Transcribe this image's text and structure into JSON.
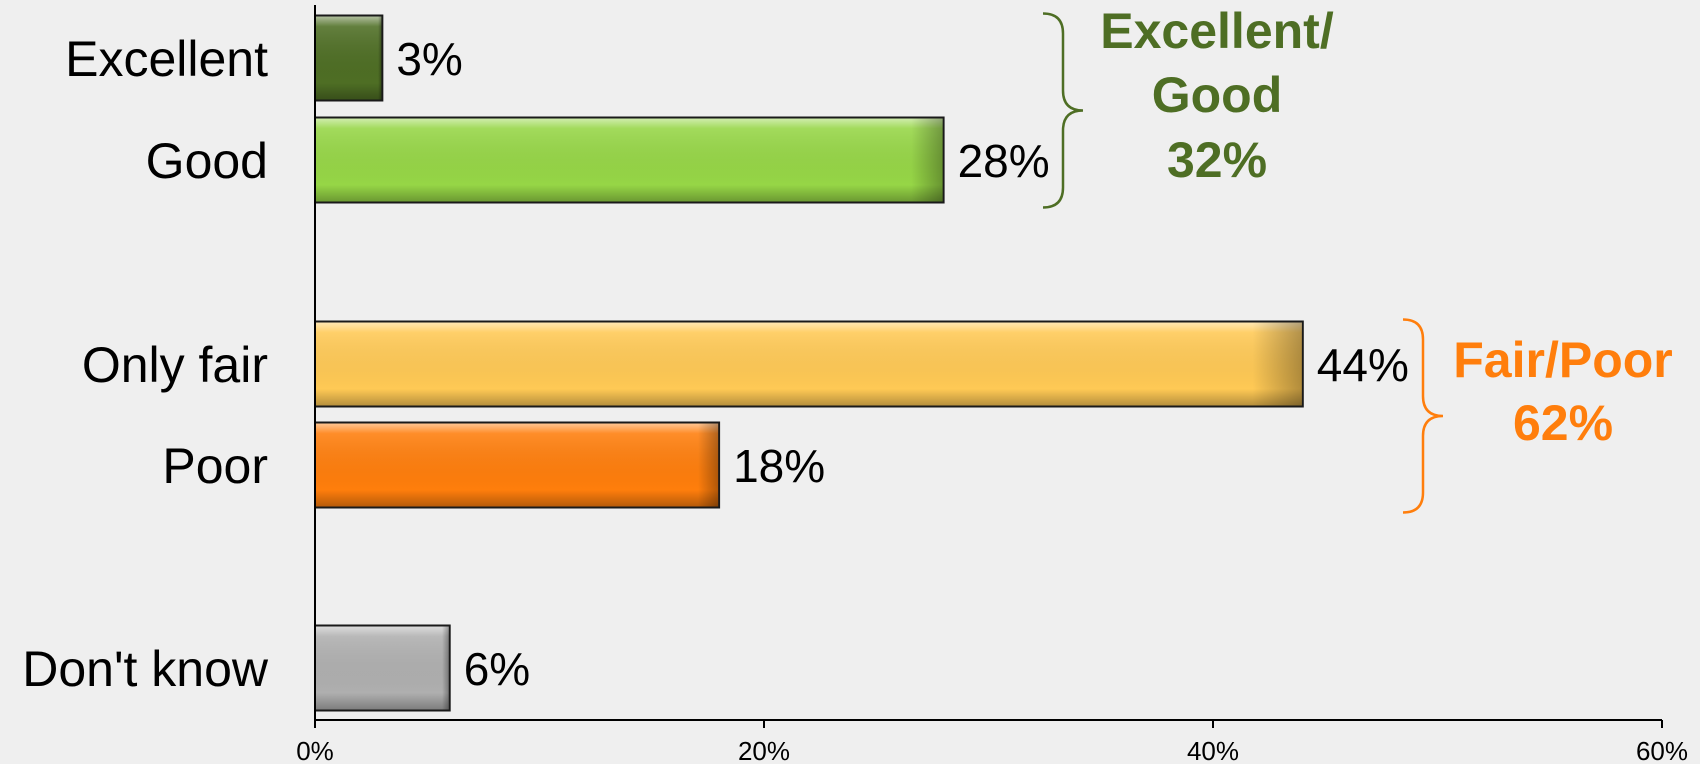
{
  "chart_data": {
    "type": "bar",
    "orientation": "horizontal",
    "title": "",
    "xlabel": "",
    "ylabel": "",
    "xlim": [
      0,
      60
    ],
    "x_ticks": [
      "0%",
      "20%",
      "40%",
      "60%"
    ],
    "grid": false,
    "legend": "none",
    "categories": [
      "Excellent",
      "Good",
      "Only fair",
      "Poor",
      "Don't know"
    ],
    "values": [
      3,
      28,
      44,
      18,
      6
    ],
    "value_labels": [
      "3%",
      "28%",
      "44%",
      "18%",
      "6%"
    ],
    "colors": [
      "#4e6e24",
      "#96d646",
      "#ffc955",
      "#ff7e0c",
      "#afafaf"
    ],
    "groups": [
      {
        "name_lines": [
          "Excellent/",
          "Good"
        ],
        "value_label": "32%",
        "color": "#4e6e24",
        "member_indices": [
          0,
          1
        ]
      },
      {
        "name_lines": [
          "Fair/Poor"
        ],
        "value_label": "62%",
        "color": "#ff7e0c",
        "member_indices": [
          2,
          3
        ]
      }
    ]
  }
}
